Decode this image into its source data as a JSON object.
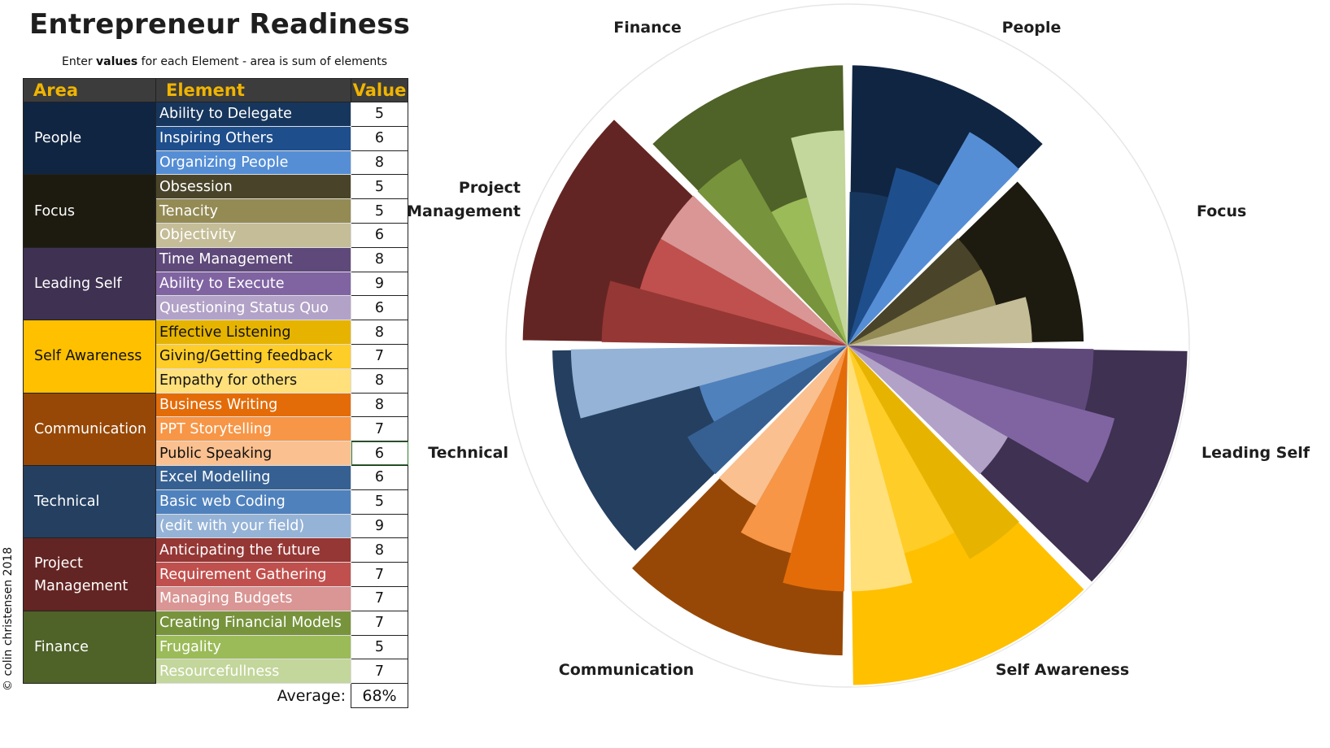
{
  "title": "Entrepreneur Readiness",
  "subtitle": {
    "prefix": "Enter ",
    "bold": "values",
    "suffix": " for each Element - area is sum of elements"
  },
  "copyright": "© colin christensen 2018",
  "table": {
    "headers": {
      "area": "Area",
      "element": "Element",
      "value": "Value"
    },
    "average_label": "Average:",
    "average_value": "68%",
    "areas": [
      {
        "name": "People",
        "color": "#102542",
        "elements": [
          {
            "name": "Ability to Delegate",
            "value": 5,
            "color": "#17365d"
          },
          {
            "name": "Inspiring Others",
            "value": 6,
            "color": "#1f4e8c"
          },
          {
            "name": "Organizing People",
            "value": 8,
            "color": "#558ed5"
          }
        ]
      },
      {
        "name": "Focus",
        "color": "#1d1b10",
        "elements": [
          {
            "name": "Obsession",
            "value": 5,
            "color": "#494429"
          },
          {
            "name": "Tenacity",
            "value": 5,
            "color": "#948a54"
          },
          {
            "name": "Objectivity",
            "value": 6,
            "color": "#c4bd97"
          }
        ]
      },
      {
        "name": "Leading Self",
        "color": "#3f3151",
        "elements": [
          {
            "name": "Time Management",
            "value": 8,
            "color": "#5f497a"
          },
          {
            "name": "Ability to Execute",
            "value": 9,
            "color": "#8064a2"
          },
          {
            "name": "Questioning Status Quo",
            "value": 6,
            "color": "#b2a2c7"
          }
        ]
      },
      {
        "name": "Self Awareness",
        "color": "#ffc000",
        "elements": [
          {
            "name": "Effective Listening",
            "value": 8,
            "color": "#e6b400"
          },
          {
            "name": "Giving/Getting feedback",
            "value": 7,
            "color": "#ffcd28"
          },
          {
            "name": "Empathy for others",
            "value": 8,
            "color": "#ffe07a"
          }
        ]
      },
      {
        "name": "Communication",
        "color": "#974806",
        "elements": [
          {
            "name": "Business Writing",
            "value": 8,
            "color": "#e36c09"
          },
          {
            "name": "PPT Storytelling",
            "value": 7,
            "color": "#f79646"
          },
          {
            "name": "Public Speaking",
            "value": 6,
            "color": "#fac08f"
          }
        ]
      },
      {
        "name": "Technical",
        "color": "#243f60",
        "elements": [
          {
            "name": "Excel Modelling",
            "value": 6,
            "color": "#366092"
          },
          {
            "name": "Basic web Coding",
            "value": 5,
            "color": "#4f81bd"
          },
          {
            "name": "(edit with your field)",
            "value": 9,
            "color": "#95b3d7"
          }
        ]
      },
      {
        "name": "Project Management",
        "color": "#632523",
        "elements": [
          {
            "name": "Anticipating the future",
            "value": 8,
            "color": "#953735"
          },
          {
            "name": "Requirement Gathering",
            "value": 7,
            "color": "#c0504d"
          },
          {
            "name": "Managing Budgets",
            "value": 7,
            "color": "#d99694"
          }
        ]
      },
      {
        "name": "Finance",
        "color": "#4f6228",
        "elements": [
          {
            "name": "Creating Financial Models",
            "value": 7,
            "color": "#77933c"
          },
          {
            "name": "Frugality",
            "value": 5,
            "color": "#9bbb59"
          },
          {
            "name": "Resourcefullness",
            "value": 7,
            "color": "#c3d69b"
          }
        ]
      }
    ]
  },
  "chart_data": {
    "type": "polar-bar",
    "element_scale_max": 10,
    "area_scale_max": 30,
    "area_labels": [
      "People",
      "Focus",
      "Leading Self",
      "Self Awareness",
      "Communication",
      "Technical",
      "Project Management",
      "Finance"
    ],
    "area_totals": [
      19,
      16,
      23,
      23,
      21,
      20,
      22,
      19
    ],
    "element_values": [
      5,
      6,
      8,
      5,
      5,
      6,
      8,
      9,
      6,
      8,
      7,
      8,
      8,
      7,
      6,
      6,
      5,
      9,
      8,
      7,
      7,
      7,
      5,
      7
    ]
  }
}
